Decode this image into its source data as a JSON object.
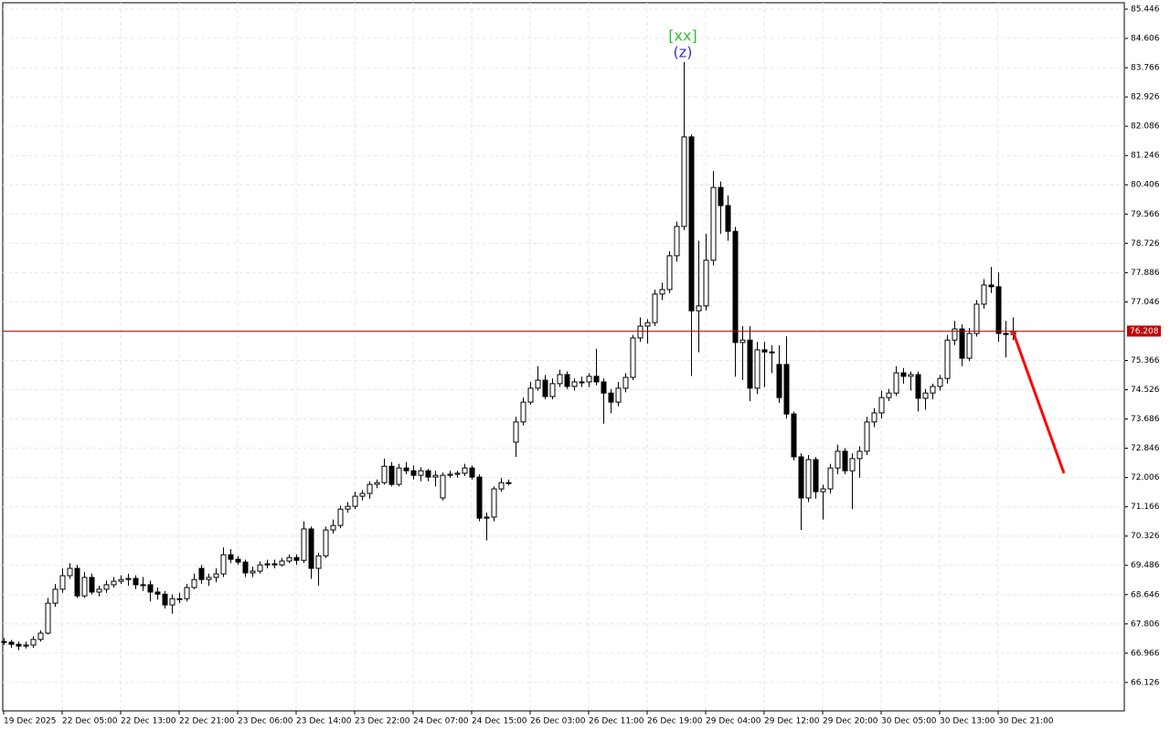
{
  "chart_data": {
    "type": "candlestick",
    "ylim": [
      65.31,
      85.63
    ],
    "yticks": [
      85.446,
      84.606,
      83.766,
      82.926,
      82.086,
      81.246,
      80.406,
      79.566,
      78.726,
      77.886,
      77.046,
      75.366,
      74.526,
      73.686,
      72.846,
      72.006,
      71.166,
      70.326,
      69.486,
      68.646,
      67.806,
      66.966,
      66.126
    ],
    "xlim": [
      -0.125,
      153.25
    ],
    "xticks": [
      {
        "value": 0,
        "label": "19 Dec 2025"
      },
      {
        "value": 8,
        "label": "22 Dec 05:00"
      },
      {
        "value": 16,
        "label": "22 Dec 13:00"
      },
      {
        "value": 24,
        "label": "22 Dec 21:00"
      },
      {
        "value": 32,
        "label": "23 Dec 06:00"
      },
      {
        "value": 40,
        "label": "23 Dec 14:00"
      },
      {
        "value": 48,
        "label": "23 Dec 22:00"
      },
      {
        "value": 56,
        "label": "24 Dec 07:00"
      },
      {
        "value": 64,
        "label": "24 Dec 15:00"
      },
      {
        "value": 72,
        "label": "26 Dec 03:00"
      },
      {
        "value": 80,
        "label": "26 Dec 11:00"
      },
      {
        "value": 88,
        "label": "26 Dec 19:00"
      },
      {
        "value": 96,
        "label": "29 Dec 04:00"
      },
      {
        "value": 104,
        "label": "29 Dec 12:00"
      },
      {
        "value": 112,
        "label": "29 Dec 20:00"
      },
      {
        "value": 120,
        "label": "30 Dec 05:00"
      },
      {
        "value": 128,
        "label": "30 Dec 13:00"
      },
      {
        "value": 136,
        "label": "30 Dec 21:00"
      }
    ],
    "grid": true,
    "up_color": "#ffffff",
    "down_color": "#000000",
    "price_line": 76.208,
    "price_line_color": "#c00000",
    "forecast": {
      "color": "#ff0000",
      "x": [
        138,
        145
      ],
      "values": [
        76.208,
        72.13
      ]
    },
    "annotations": [
      {
        "text": "[xx]",
        "color": "#33bb33",
        "x": 93
      },
      {
        "text": "(z)",
        "color": "#3333cc",
        "x": 93
      }
    ],
    "candles": [
      [
        67.3,
        67.4,
        67.2,
        67.28
      ],
      [
        67.28,
        67.35,
        67.12,
        67.22
      ],
      [
        67.22,
        67.3,
        67.05,
        67.17
      ],
      [
        67.17,
        67.3,
        67.1,
        67.2
      ],
      [
        67.2,
        67.45,
        67.12,
        67.36
      ],
      [
        67.36,
        67.62,
        67.3,
        67.54
      ],
      [
        67.54,
        68.55,
        67.5,
        68.4
      ],
      [
        68.4,
        68.95,
        68.3,
        68.8
      ],
      [
        68.8,
        69.4,
        68.7,
        69.19
      ],
      [
        69.19,
        69.55,
        69.1,
        69.4
      ],
      [
        69.4,
        69.5,
        68.55,
        68.61
      ],
      [
        68.61,
        69.3,
        68.55,
        69.14
      ],
      [
        69.14,
        69.25,
        68.65,
        68.72
      ],
      [
        68.72,
        68.9,
        68.6,
        68.8
      ],
      [
        68.8,
        69.05,
        68.7,
        68.93
      ],
      [
        68.93,
        69.15,
        68.85,
        69.03
      ],
      [
        69.03,
        69.2,
        68.95,
        69.08
      ],
      [
        69.08,
        69.25,
        68.9,
        69.11
      ],
      [
        69.11,
        69.2,
        68.8,
        68.93
      ],
      [
        68.93,
        69.15,
        68.75,
        68.93
      ],
      [
        68.93,
        69.05,
        68.45,
        68.72
      ],
      [
        68.72,
        68.85,
        68.5,
        68.66
      ],
      [
        68.66,
        68.75,
        68.25,
        68.35
      ],
      [
        68.35,
        68.65,
        68.1,
        68.53
      ],
      [
        68.53,
        68.7,
        68.4,
        68.53
      ],
      [
        68.53,
        68.95,
        68.45,
        68.85
      ],
      [
        68.85,
        69.25,
        68.8,
        69.08
      ],
      [
        69.4,
        69.5,
        68.95,
        69.08
      ],
      [
        69.08,
        69.25,
        68.9,
        69.14
      ],
      [
        69.14,
        69.4,
        69.0,
        69.24
      ],
      [
        69.24,
        70.0,
        69.15,
        69.79
      ],
      [
        69.79,
        69.95,
        69.55,
        69.66
      ],
      [
        69.66,
        69.75,
        69.5,
        69.58
      ],
      [
        69.58,
        69.65,
        69.15,
        69.27
      ],
      [
        69.27,
        69.45,
        69.15,
        69.32
      ],
      [
        69.32,
        69.6,
        69.25,
        69.5
      ],
      [
        69.5,
        69.65,
        69.4,
        69.53
      ],
      [
        69.53,
        69.65,
        69.4,
        69.5
      ],
      [
        69.5,
        69.7,
        69.45,
        69.61
      ],
      [
        69.61,
        69.8,
        69.55,
        69.71
      ],
      [
        69.71,
        69.8,
        69.5,
        69.63
      ],
      [
        69.63,
        70.75,
        69.55,
        70.53
      ],
      [
        70.53,
        70.6,
        69.1,
        69.4
      ],
      [
        69.4,
        69.85,
        68.9,
        69.76
      ],
      [
        69.76,
        70.6,
        69.7,
        70.5
      ],
      [
        70.5,
        70.8,
        70.4,
        70.63
      ],
      [
        70.63,
        71.2,
        70.55,
        71.1
      ],
      [
        71.1,
        71.3,
        71.0,
        71.18
      ],
      [
        71.18,
        71.6,
        71.1,
        71.47
      ],
      [
        71.47,
        71.65,
        71.35,
        71.55
      ],
      [
        71.55,
        71.9,
        71.4,
        71.81
      ],
      [
        71.81,
        71.95,
        71.7,
        71.86
      ],
      [
        71.86,
        72.55,
        71.8,
        72.33
      ],
      [
        72.33,
        72.45,
        71.75,
        71.81
      ],
      [
        71.81,
        72.4,
        71.75,
        72.28
      ],
      [
        72.28,
        72.45,
        72.1,
        72.2
      ],
      [
        72.2,
        72.35,
        71.95,
        72.07
      ],
      [
        72.07,
        72.3,
        71.9,
        72.2
      ],
      [
        72.2,
        72.25,
        71.9,
        72.02
      ],
      [
        72.02,
        72.2,
        71.75,
        72.07
      ],
      [
        71.42,
        72.15,
        71.35,
        72.07
      ],
      [
        72.07,
        72.2,
        72.0,
        72.1
      ],
      [
        72.1,
        72.2,
        72.0,
        72.13
      ],
      [
        72.13,
        72.4,
        72.05,
        72.28
      ],
      [
        72.28,
        72.35,
        71.95,
        72.02
      ],
      [
        72.02,
        72.1,
        70.75,
        70.84
      ],
      [
        70.84,
        71.0,
        70.2,
        70.87
      ],
      [
        70.87,
        71.75,
        70.75,
        71.68
      ],
      [
        71.68,
        72.0,
        71.6,
        71.86
      ],
      [
        71.86,
        71.95,
        71.78,
        71.86
      ],
      [
        73.02,
        73.75,
        72.6,
        73.6
      ],
      [
        73.6,
        74.3,
        73.5,
        74.17
      ],
      [
        74.17,
        74.75,
        74.1,
        74.57
      ],
      [
        74.57,
        75.2,
        74.5,
        74.8
      ],
      [
        74.8,
        74.95,
        74.25,
        74.33
      ],
      [
        74.33,
        74.85,
        74.25,
        74.7
      ],
      [
        74.7,
        75.1,
        74.6,
        74.96
      ],
      [
        74.96,
        75.05,
        74.55,
        74.62
      ],
      [
        74.62,
        74.85,
        74.5,
        74.75
      ],
      [
        74.75,
        74.9,
        74.6,
        74.75
      ],
      [
        74.75,
        75.0,
        74.6,
        74.91
      ],
      [
        74.91,
        75.7,
        74.65,
        74.75
      ],
      [
        74.75,
        74.85,
        73.55,
        74.43
      ],
      [
        74.43,
        74.55,
        73.85,
        74.17
      ],
      [
        74.17,
        74.75,
        74.05,
        74.57
      ],
      [
        74.57,
        75.0,
        74.45,
        74.88
      ],
      [
        74.88,
        76.1,
        74.8,
        76.01
      ],
      [
        76.01,
        76.6,
        75.9,
        76.35
      ],
      [
        76.35,
        76.55,
        75.85,
        76.45
      ],
      [
        76.45,
        77.4,
        76.35,
        77.27
      ],
      [
        77.27,
        77.6,
        77.1,
        77.4
      ],
      [
        77.4,
        78.5,
        77.3,
        78.37
      ],
      [
        78.37,
        79.35,
        78.2,
        79.21
      ],
      [
        79.21,
        83.93,
        79.1,
        81.78
      ],
      [
        81.78,
        81.85,
        74.92,
        76.79
      ],
      [
        76.79,
        78.8,
        75.6,
        76.93
      ],
      [
        76.93,
        79.0,
        76.8,
        78.24
      ],
      [
        78.24,
        80.8,
        78.1,
        80.33
      ],
      [
        80.33,
        80.5,
        79.0,
        79.81
      ],
      [
        79.81,
        80.1,
        78.8,
        79.07
      ],
      [
        79.07,
        79.2,
        74.9,
        75.88
      ],
      [
        75.88,
        76.35,
        74.8,
        75.95
      ],
      [
        75.95,
        76.35,
        74.2,
        74.57
      ],
      [
        74.57,
        75.9,
        74.4,
        75.67
      ],
      [
        75.67,
        75.9,
        74.6,
        75.61
      ],
      [
        75.61,
        75.8,
        75.0,
        75.61
      ],
      [
        75.25,
        75.8,
        74.15,
        74.3
      ],
      [
        75.25,
        76.06,
        73.7,
        73.83
      ],
      [
        73.83,
        73.9,
        72.5,
        72.6
      ],
      [
        72.6,
        72.7,
        70.5,
        71.42
      ],
      [
        71.42,
        72.65,
        71.3,
        72.52
      ],
      [
        72.52,
        72.6,
        71.4,
        71.6
      ],
      [
        71.6,
        71.8,
        70.8,
        71.68
      ],
      [
        71.68,
        72.4,
        71.55,
        72.28
      ],
      [
        72.28,
        72.95,
        72.1,
        72.76
      ],
      [
        72.76,
        72.85,
        72.1,
        72.2
      ],
      [
        72.2,
        72.7,
        71.1,
        72.55
      ],
      [
        72.55,
        72.9,
        72.0,
        72.76
      ],
      [
        72.76,
        73.75,
        72.65,
        73.6
      ],
      [
        73.6,
        74.0,
        73.45,
        73.86
      ],
      [
        73.86,
        74.5,
        73.7,
        74.3
      ],
      [
        74.3,
        74.55,
        74.2,
        74.43
      ],
      [
        74.43,
        75.2,
        74.35,
        75.01
      ],
      [
        75.01,
        75.15,
        74.7,
        74.91
      ],
      [
        74.91,
        75.05,
        74.5,
        74.96
      ],
      [
        74.96,
        75.05,
        73.9,
        74.28
      ],
      [
        74.28,
        74.55,
        73.95,
        74.43
      ],
      [
        74.43,
        74.7,
        74.25,
        74.62
      ],
      [
        74.62,
        74.95,
        74.5,
        74.85
      ],
      [
        74.85,
        76.1,
        74.7,
        75.95
      ],
      [
        75.95,
        76.5,
        75.8,
        76.27
      ],
      [
        76.27,
        76.4,
        75.2,
        75.43
      ],
      [
        75.43,
        76.3,
        75.35,
        76.14
      ],
      [
        76.14,
        77.1,
        76.05,
        76.98
      ],
      [
        76.98,
        77.7,
        76.85,
        77.53
      ],
      [
        77.53,
        78.05,
        77.3,
        77.48
      ],
      [
        77.48,
        77.9,
        75.9,
        76.14
      ],
      [
        76.14,
        76.5,
        75.45,
        76.11
      ],
      [
        76.11,
        76.6,
        75.95,
        76.208
      ]
    ]
  }
}
